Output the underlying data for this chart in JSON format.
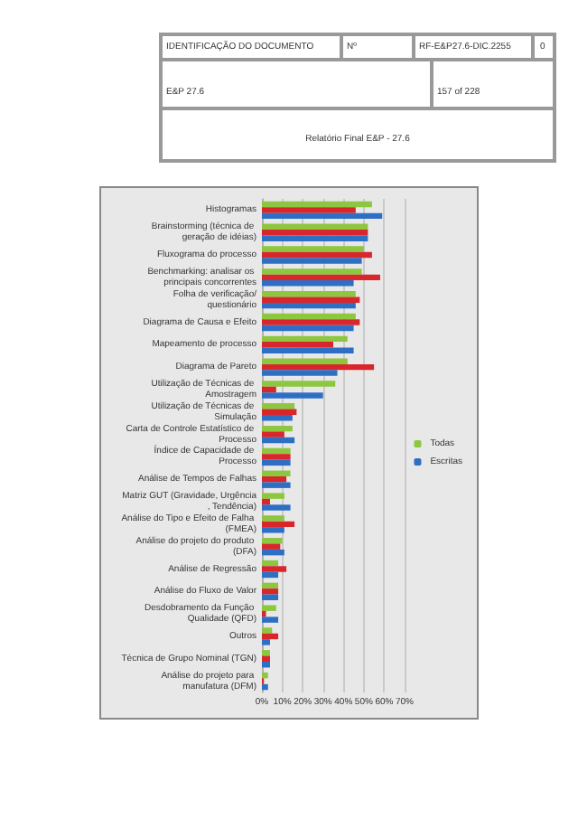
{
  "chart_data": {
    "type": "bar",
    "orientation": "horizontal",
    "title": "Relatório Final E&P - 27.6",
    "annotations": [
      "IDENTIFICAÇÃO DO DOCUMENTO",
      "Nº",
      "RF-E&P27.6-DIC.2255",
      "0",
      "E&P 27.6",
      "157 of 228"
    ],
    "categories": [
      "Histogramas",
      "Brainstorming (técnica de geração de idéias)",
      "Fluxograma do processo",
      "Benchmarking: analisar os principais concorrentes",
      "Folha de verificação/questionário",
      "Diagrama de Causa e Efeito",
      "Mapeamento de processo",
      "Diagrama de Pareto",
      "Utilização de Técnicas de Amostragem",
      "Utilização de Técnicas de Simulação",
      "Carta de Controle Estatístico de Processo",
      "Índice de Capacidade de Processo",
      "Análise de Tempos de Falhas",
      "Matriz GUT (Gravidade, Urgência, Tendência)",
      "Análise do Tipo e Efeito de Falha (FMEA)",
      "Análise do projeto do produto (DFA)",
      "Análise de Regressão",
      "Análise do Fluxo de Valor",
      "Desdobramento da Função Qualidade (QFD)",
      "Outros",
      "Técnica de Grupo Nominal (TGN)",
      "Análise do projeto para manufatura (DFM)"
    ],
    "series": [
      {
        "name": "Todas",
        "color": "#8dc63f",
        "values": [
          54,
          52,
          50,
          49,
          46,
          46,
          42,
          42,
          36,
          16,
          15,
          14,
          14,
          11,
          11,
          10,
          8,
          8,
          7,
          5,
          4,
          3
        ]
      },
      {
        "color": "#d9262c",
        "values": [
          46,
          52,
          54,
          58,
          48,
          48,
          35,
          55,
          7,
          17,
          11,
          14,
          12,
          4,
          16,
          9,
          12,
          8,
          2,
          8,
          4,
          1
        ]
      },
      {
        "name": "Escritas",
        "color": "#2e6fc4",
        "values": [
          59,
          52,
          49,
          45,
          46,
          45,
          45,
          37,
          30,
          15,
          16,
          14,
          14,
          14,
          11,
          11,
          8,
          8,
          8,
          4,
          4,
          3
        ]
      }
    ],
    "xlim": [
      0,
      70
    ],
    "xticks": [
      {
        "value": 0,
        "label": "0%"
      },
      {
        "value": 10,
        "label": "10%"
      },
      {
        "value": 20,
        "label": "20%"
      },
      {
        "value": 30,
        "label": "30%"
      },
      {
        "value": 40,
        "label": "40%"
      },
      {
        "value": 50,
        "label": "50%"
      },
      {
        "value": 60,
        "label": "60%"
      },
      {
        "value": 70,
        "label": "70%"
      }
    ],
    "grid": "x",
    "legend": "right"
  }
}
